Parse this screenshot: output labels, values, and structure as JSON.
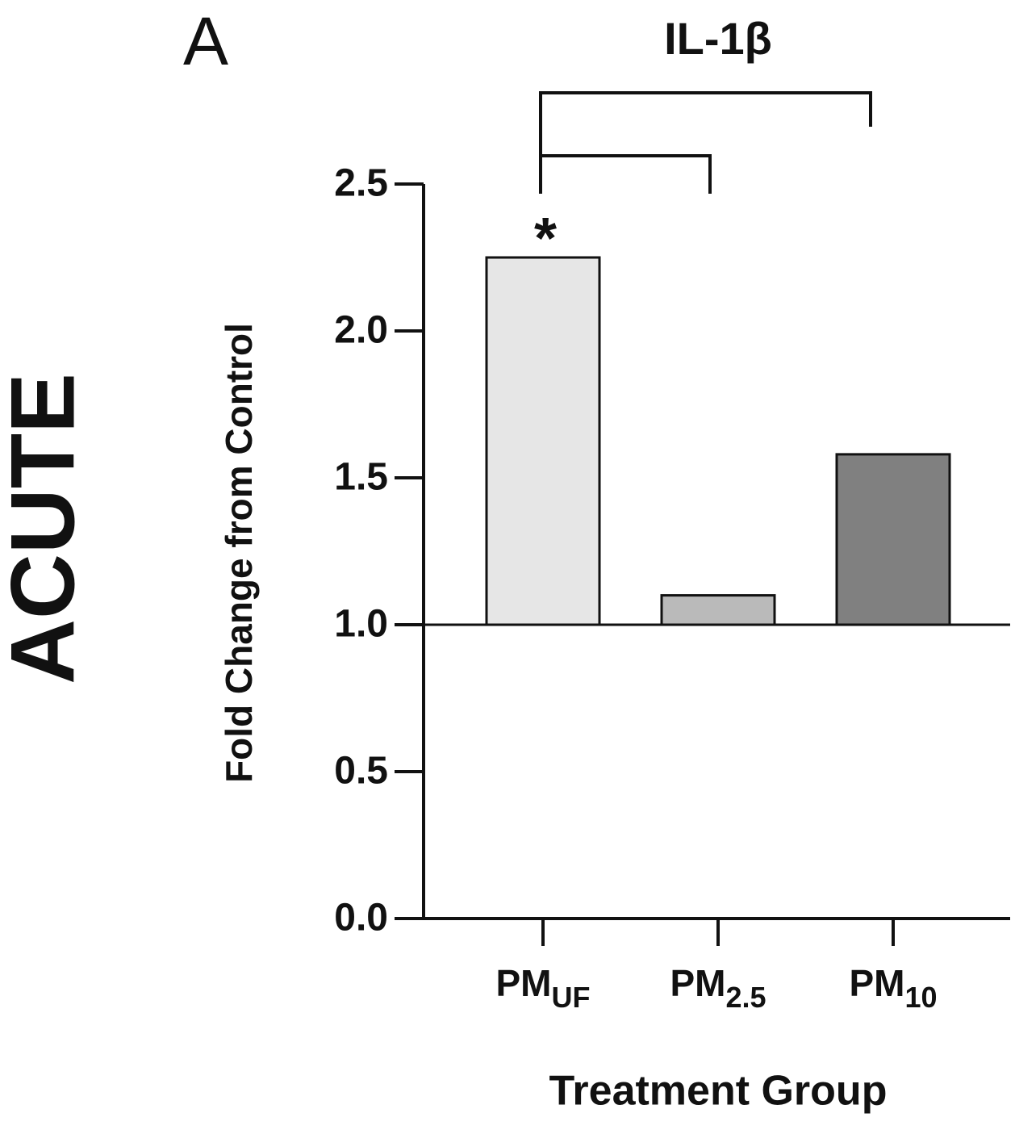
{
  "chart_data": {
    "type": "bar",
    "panel_label": "A",
    "side_label": "ACUTE",
    "title": "IL-1β",
    "y_label": "Fold Change from Control",
    "x_label": "Treatment Group",
    "categories": [
      {
        "text": "PM",
        "subscript": "UF"
      },
      {
        "text": "PM",
        "subscript": "2.5"
      },
      {
        "text": "PM",
        "subscript": "10"
      }
    ],
    "values": [
      2.25,
      1.1,
      1.58
    ],
    "colors": [
      "#e6e6e6",
      "#bababa",
      "#808080"
    ],
    "baseline": 1,
    "annotation": "*",
    "ylim": [
      0,
      2.5
    ],
    "yticks": [
      {
        "value": 0,
        "label": "0.0"
      },
      0.5,
      {
        "value": 1,
        "label": "1.0"
      },
      1.5,
      {
        "value": 2,
        "label": "2.0"
      },
      2.5
    ]
  }
}
